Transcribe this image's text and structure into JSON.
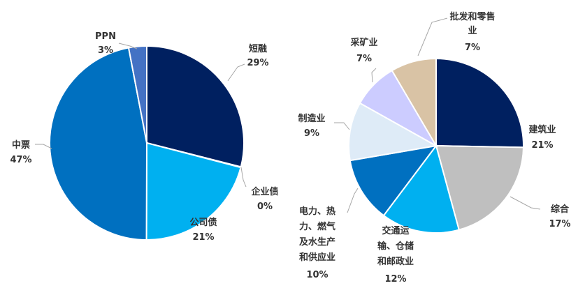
{
  "chart_data": [
    {
      "type": "pie",
      "slices": [
        {
          "label": "短融",
          "pct_text": "29%",
          "value": 29,
          "color": "#002060"
        },
        {
          "label": "企业债",
          "pct_text": "0%",
          "value": 0.1,
          "color": "#0070c0"
        },
        {
          "label": "公司债",
          "pct_text": "21%",
          "value": 21,
          "color": "#00b0f0"
        },
        {
          "label": "中票",
          "pct_text": "47%",
          "value": 47,
          "color": "#0070c0"
        },
        {
          "label": "PPN",
          "pct_text": "3%",
          "value": 3,
          "color": "#4472c4"
        }
      ]
    },
    {
      "type": "pie",
      "slices": [
        {
          "label": "建筑业",
          "pct_text": "21%",
          "value": 21,
          "color": "#002060"
        },
        {
          "label": "综合",
          "pct_text": "17%",
          "value": 17,
          "color": "#bfbfbf"
        },
        {
          "label": "交通运输、仓储和邮政业",
          "pct_text": "12%",
          "value": 12,
          "color": "#00b0f0"
        },
        {
          "label": "电力、热力、燃气及水生产和供应业",
          "pct_text": "10%",
          "value": 10,
          "color": "#0070c0"
        },
        {
          "label": "制造业",
          "pct_text": "9%",
          "value": 9,
          "color": "#deebf7"
        },
        {
          "label": "采矿业",
          "pct_text": "7%",
          "value": 7,
          "color": "#ccccff"
        },
        {
          "label": "批发和零售业",
          "pct_text": "7%",
          "value": 7,
          "color": "#d9c3a5"
        }
      ]
    }
  ]
}
